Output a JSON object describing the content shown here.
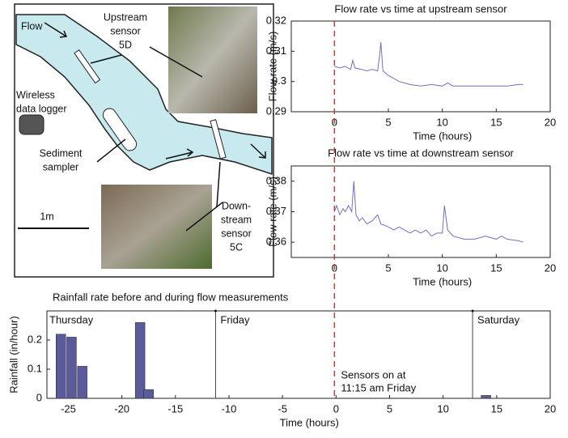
{
  "diagram": {
    "labels": {
      "flow": [
        "Flow"
      ],
      "upstream": [
        "Upstream",
        "sensor",
        "5D"
      ],
      "logger": [
        "Wireless",
        "data logger"
      ],
      "sampler": [
        "Sediment",
        "sampler"
      ],
      "downstream": [
        "Down-",
        "stream",
        "sensor",
        "5C"
      ],
      "scale": [
        "1m"
      ]
    }
  },
  "start_marker": 0,
  "chart_data": [
    {
      "type": "line",
      "title": "Flow rate vs time at upstream sensor",
      "xlabel": "Time (hours)",
      "ylabel": "Flow rate (m/s)",
      "xlim": [
        -4,
        20
      ],
      "xticks": [
        0,
        5,
        10,
        15,
        20
      ],
      "ylim": [
        0.29,
        0.32
      ],
      "yticks": [
        0.29,
        0.3,
        0.31,
        0.32
      ],
      "series": [
        {
          "color": "#6f70c0",
          "x": [
            0,
            0.5,
            1,
            1.5,
            1.7,
            1.9,
            2.5,
            3,
            3.5,
            4,
            4.2,
            4.3,
            4.5,
            5,
            5.5,
            6,
            6.5,
            7,
            8,
            9,
            10,
            10.5,
            11,
            12,
            13,
            14,
            15,
            16,
            17,
            17.5
          ],
          "values": [
            0.305,
            0.3045,
            0.305,
            0.304,
            0.307,
            0.3045,
            0.304,
            0.3035,
            0.304,
            0.3035,
            0.309,
            0.313,
            0.3035,
            0.302,
            0.301,
            0.3,
            0.2995,
            0.299,
            0.2985,
            0.299,
            0.2985,
            0.2995,
            0.2985,
            0.2985,
            0.2985,
            0.2985,
            0.2985,
            0.2985,
            0.299,
            0.299
          ]
        }
      ]
    },
    {
      "type": "line",
      "title": "Flow rate vs time at downstream sensor",
      "xlabel": "Time (hours)",
      "ylabel": "Flow rate (m/s)",
      "xlim": [
        -4,
        20
      ],
      "xticks": [
        0,
        5,
        10,
        15,
        20
      ],
      "ylim": [
        0.355,
        0.385
      ],
      "yticks": [
        0.36,
        0.37,
        0.38
      ],
      "series": [
        {
          "color": "#6f70c0",
          "x": [
            0,
            0.2,
            0.5,
            0.8,
            1,
            1.3,
            1.6,
            1.8,
            2,
            2.3,
            2.6,
            3,
            3.5,
            4,
            4.3,
            5,
            5.5,
            6,
            6.5,
            7,
            7.5,
            8,
            8.5,
            9,
            9.5,
            10,
            10.2,
            10.5,
            11,
            12,
            13,
            14,
            15,
            15.5,
            16,
            17,
            17.5
          ],
          "values": [
            0.37,
            0.372,
            0.369,
            0.371,
            0.37,
            0.372,
            0.37,
            0.38,
            0.369,
            0.367,
            0.368,
            0.366,
            0.367,
            0.369,
            0.366,
            0.365,
            0.364,
            0.365,
            0.364,
            0.363,
            0.364,
            0.363,
            0.364,
            0.362,
            0.363,
            0.363,
            0.372,
            0.364,
            0.362,
            0.361,
            0.361,
            0.362,
            0.361,
            0.362,
            0.361,
            0.3605,
            0.36
          ]
        }
      ]
    },
    {
      "type": "bar",
      "title": "Rainfall rate before and during flow measurements",
      "xlabel": "Time (hours)",
      "ylabel": "Rainfall (in/hour)",
      "xlim": [
        -27,
        20
      ],
      "xticks": [
        -25,
        -20,
        -15,
        -10,
        -5,
        0,
        5,
        10,
        15,
        20
      ],
      "ylim": [
        0,
        0.3
      ],
      "yticks": [
        0,
        0.1,
        0.2
      ],
      "color": "#5b5b9c",
      "x": [
        -25.7,
        -24.7,
        -23.7,
        -18.3,
        -17.5,
        14
      ],
      "values": [
        0.22,
        0.21,
        0.11,
        0.26,
        0.03,
        0.01
      ],
      "days": [
        "Thursday",
        "Friday",
        "Saturday"
      ],
      "day_boundaries": [
        -11.25,
        12.75
      ],
      "annotation": [
        "Sensors on at",
        "11:15 am Friday"
      ]
    }
  ]
}
